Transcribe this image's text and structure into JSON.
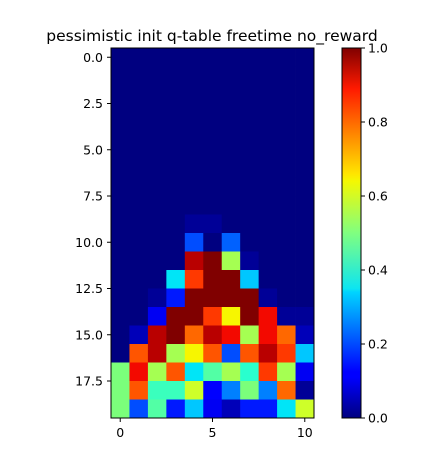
{
  "chart_data": {
    "type": "heatmap",
    "title": "pessimistic init q-table freetime no_reward",
    "xlabel": "",
    "ylabel": "",
    "colormap": "jet",
    "vmin": 0.0,
    "vmax": 1.0,
    "n_rows": 20,
    "n_cols": 11,
    "x_ticks": [
      0,
      5,
      10
    ],
    "x_tick_labels": [
      "0",
      "5",
      "10"
    ],
    "y_ticks": [
      0,
      2.5,
      5,
      7.5,
      10,
      12.5,
      15,
      17.5
    ],
    "y_tick_labels": [
      "0.0",
      "2.5",
      "5.0",
      "7.5",
      "10.0",
      "12.5",
      "15.0",
      "17.5"
    ],
    "colorbar_ticks": [
      0.0,
      0.2,
      0.4,
      0.6,
      0.8,
      1.0
    ],
    "colorbar_tick_labels": [
      "0.0",
      "0.2",
      "0.4",
      "0.6",
      "0.8",
      "1.0"
    ],
    "values": [
      [
        0,
        0,
        0,
        0,
        0,
        0,
        0,
        0,
        0,
        0,
        0
      ],
      [
        0,
        0,
        0,
        0,
        0,
        0,
        0,
        0,
        0,
        0,
        0
      ],
      [
        0,
        0,
        0,
        0,
        0,
        0,
        0,
        0,
        0,
        0,
        0
      ],
      [
        0,
        0,
        0,
        0,
        0,
        0,
        0,
        0,
        0,
        0,
        0
      ],
      [
        0,
        0,
        0,
        0,
        0,
        0,
        0,
        0,
        0,
        0,
        0
      ],
      [
        0,
        0,
        0,
        0,
        0,
        0,
        0,
        0,
        0,
        0,
        0
      ],
      [
        0,
        0,
        0,
        0,
        0,
        0,
        0,
        0,
        0,
        0,
        0
      ],
      [
        0,
        0,
        0,
        0,
        0,
        0,
        0,
        0,
        0,
        0,
        0
      ],
      [
        0,
        0,
        0,
        0,
        0,
        0,
        0,
        0,
        0,
        0,
        0
      ],
      [
        0,
        0,
        0,
        0,
        0.02,
        0.02,
        0,
        0,
        0,
        0,
        0
      ],
      [
        0,
        0,
        0,
        0,
        0.2,
        0,
        0.22,
        0,
        0,
        0,
        0
      ],
      [
        0,
        0,
        0,
        0,
        0.95,
        1.0,
        0.55,
        0.02,
        0,
        0,
        0
      ],
      [
        0,
        0,
        0,
        0.35,
        0.85,
        1.0,
        1.0,
        0.32,
        0,
        0,
        0
      ],
      [
        0,
        0,
        0.02,
        0.15,
        1.0,
        1.0,
        1.0,
        1.0,
        0.02,
        0,
        0
      ],
      [
        0,
        0,
        0.1,
        1.0,
        1.0,
        0.85,
        0.65,
        1.0,
        0.9,
        0.02,
        0.02
      ],
      [
        0,
        0.05,
        0.95,
        1.0,
        0.8,
        0.95,
        0.9,
        0.55,
        0.9,
        0.8,
        0.05
      ],
      [
        0,
        0.82,
        0.95,
        0.55,
        0.65,
        0.82,
        0.2,
        0.82,
        0.95,
        0.85,
        0.32
      ],
      [
        0.5,
        0.9,
        0.55,
        0.82,
        0.35,
        0.45,
        0.55,
        0.4,
        0.85,
        0.55,
        0.1
      ],
      [
        0.5,
        0.82,
        0.42,
        0.42,
        0.6,
        0.12,
        0.25,
        0.5,
        0.25,
        0.8,
        0.02
      ],
      [
        0.5,
        0.2,
        0.45,
        0.15,
        0.32,
        0.1,
        0.05,
        0.15,
        0.15,
        0.35,
        0.6
      ]
    ]
  }
}
